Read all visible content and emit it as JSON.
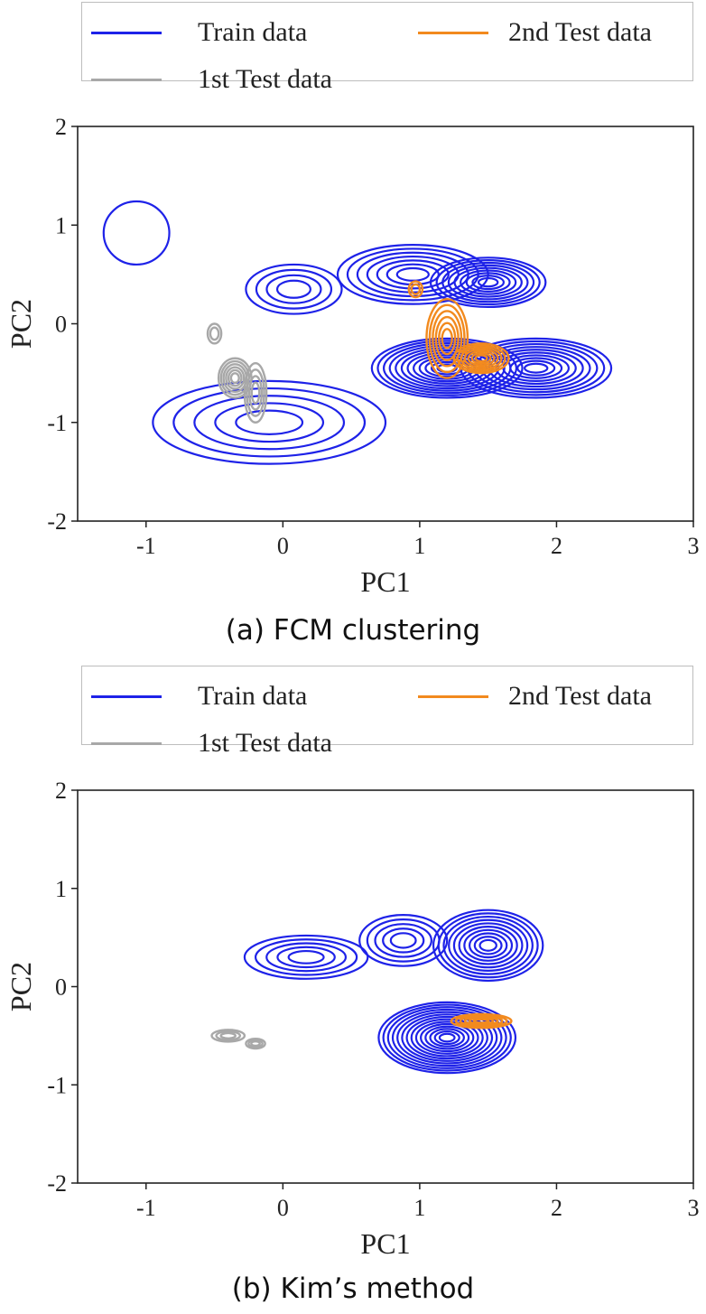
{
  "colors": {
    "train": "#1e22e8",
    "test1": "#a8a8a8",
    "test2": "#f28a1e"
  },
  "legend": {
    "train": "Train data",
    "test2": "2nd Test data",
    "test1": "1st Test data"
  },
  "chart_data": [
    {
      "type": "contour",
      "caption": "(a) FCM clustering",
      "xlabel": "PC1",
      "ylabel": "PC2",
      "xlim": [
        -1.5,
        3
      ],
      "ylim": [
        -2,
        2
      ],
      "xticks": [
        -1,
        0,
        1,
        2,
        3
      ],
      "yticks": [
        2,
        1,
        0,
        -1,
        -2
      ],
      "series": [
        {
          "name": "Train data",
          "key": "train",
          "clusters": [
            {
              "cx": -1.07,
              "cy": 0.92,
              "rx": 0.24,
              "ry": 0.32,
              "levels": 1
            },
            {
              "cx": 0.08,
              "cy": 0.35,
              "rx": 0.35,
              "ry": 0.25,
              "levels": 4
            },
            {
              "cx": 0.95,
              "cy": 0.5,
              "rx": 0.55,
              "ry": 0.3,
              "levels": 7
            },
            {
              "cx": 1.5,
              "cy": 0.42,
              "rx": 0.42,
              "ry": 0.25,
              "levels": 9
            },
            {
              "cx": 1.2,
              "cy": -0.45,
              "rx": 0.55,
              "ry": 0.3,
              "levels": 12
            },
            {
              "cx": 1.85,
              "cy": -0.45,
              "rx": 0.55,
              "ry": 0.3,
              "levels": 10
            },
            {
              "cx": -0.1,
              "cy": -1.0,
              "rx": 0.85,
              "ry": 0.42,
              "levels": 5
            }
          ]
        },
        {
          "name": "1st Test data",
          "key": "test1",
          "clusters": [
            {
              "cx": -0.35,
              "cy": -0.55,
              "rx": 0.12,
              "ry": 0.2,
              "levels": 6
            },
            {
              "cx": -0.2,
              "cy": -0.7,
              "rx": 0.08,
              "ry": 0.3,
              "levels": 4
            },
            {
              "cx": -0.5,
              "cy": -0.1,
              "rx": 0.05,
              "ry": 0.1,
              "levels": 2
            }
          ]
        },
        {
          "name": "2nd Test data",
          "key": "test2",
          "clusters": [
            {
              "cx": 1.2,
              "cy": -0.15,
              "rx": 0.15,
              "ry": 0.4,
              "levels": 6
            },
            {
              "cx": 1.45,
              "cy": -0.35,
              "rx": 0.2,
              "ry": 0.15,
              "levels": 7
            },
            {
              "cx": 0.97,
              "cy": 0.35,
              "rx": 0.05,
              "ry": 0.08,
              "levels": 2
            }
          ]
        }
      ]
    },
    {
      "type": "contour",
      "caption": "(b) Kim’s method",
      "xlabel": "PC1",
      "ylabel": "PC2",
      "xlim": [
        -1.5,
        3
      ],
      "ylim": [
        -2,
        2
      ],
      "xticks": [
        -1,
        0,
        1,
        2,
        3
      ],
      "yticks": [
        2,
        1,
        0,
        -1,
        -2
      ],
      "series": [
        {
          "name": "Train data",
          "key": "train",
          "clusters": [
            {
              "cx": 0.17,
              "cy": 0.3,
              "rx": 0.45,
              "ry": 0.22,
              "levels": 5
            },
            {
              "cx": 0.88,
              "cy": 0.47,
              "rx": 0.32,
              "ry": 0.26,
              "levels": 5
            },
            {
              "cx": 1.5,
              "cy": 0.42,
              "rx": 0.4,
              "ry": 0.36,
              "levels": 10
            },
            {
              "cx": 1.2,
              "cy": -0.52,
              "rx": 0.5,
              "ry": 0.36,
              "levels": 14
            }
          ]
        },
        {
          "name": "1st Test data",
          "key": "test1",
          "clusters": [
            {
              "cx": -0.4,
              "cy": -0.5,
              "rx": 0.12,
              "ry": 0.06,
              "levels": 3
            },
            {
              "cx": -0.2,
              "cy": -0.58,
              "rx": 0.07,
              "ry": 0.05,
              "levels": 3
            }
          ]
        },
        {
          "name": "2nd Test data",
          "key": "test2",
          "clusters": [
            {
              "cx": 1.45,
              "cy": -0.35,
              "rx": 0.22,
              "ry": 0.07,
              "levels": 6
            }
          ]
        }
      ]
    }
  ]
}
